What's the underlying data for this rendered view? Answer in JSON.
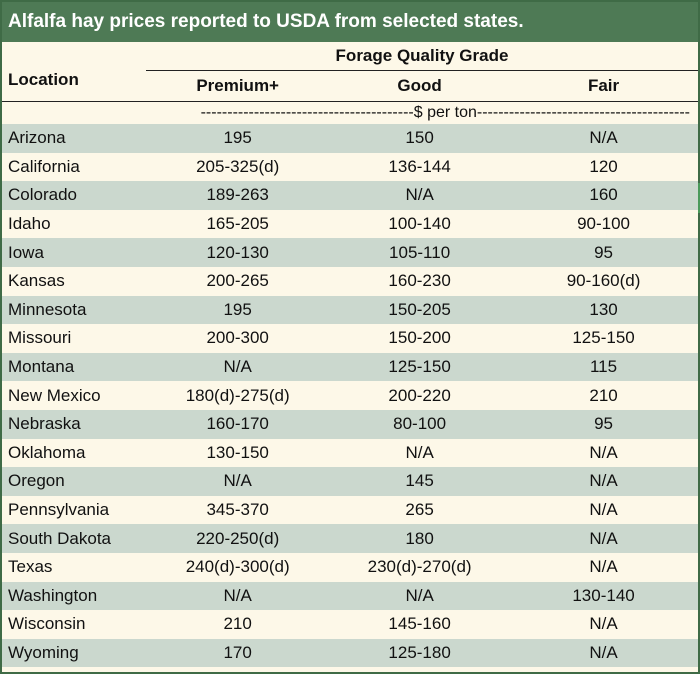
{
  "title": "Alfalfa hay prices reported to USDA from selected states.",
  "group_header": "Forage Quality Grade",
  "columns": {
    "location": "Location",
    "premium": "Premium+",
    "good": "Good",
    "fair": "Fair"
  },
  "units_label": "----------------------------------------$ per ton----------------------------------------",
  "rows": [
    {
      "location": "Arizona",
      "premium": "195",
      "good": "150",
      "fair": "N/A"
    },
    {
      "location": "California",
      "premium": "205-325(d)",
      "good": "136-144",
      "fair": "120"
    },
    {
      "location": "Colorado",
      "premium": "189-263",
      "good": "N/A",
      "fair": "160"
    },
    {
      "location": "Idaho",
      "premium": "165-205",
      "good": "100-140",
      "fair": "90-100"
    },
    {
      "location": "Iowa",
      "premium": "120-130",
      "good": "105-110",
      "fair": "95"
    },
    {
      "location": "Kansas",
      "premium": "200-265",
      "good": "160-230",
      "fair": "90-160(d)"
    },
    {
      "location": "Minnesota",
      "premium": "195",
      "good": "150-205",
      "fair": "130"
    },
    {
      "location": "Missouri",
      "premium": "200-300",
      "good": "150-200",
      "fair": "125-150"
    },
    {
      "location": "Montana",
      "premium": "N/A",
      "good": "125-150",
      "fair": "115"
    },
    {
      "location": "New Mexico",
      "premium": "180(d)-275(d)",
      "good": "200-220",
      "fair": "210"
    },
    {
      "location": "Nebraska",
      "premium": "160-170",
      "good": "80-100",
      "fair": "95"
    },
    {
      "location": "Oklahoma",
      "premium": "130-150",
      "good": "N/A",
      "fair": "N/A"
    },
    {
      "location": "Oregon",
      "premium": "N/A",
      "good": "145",
      "fair": "N/A"
    },
    {
      "location": "Pennsylvania",
      "premium": "345-370",
      "good": "265",
      "fair": "N/A"
    },
    {
      "location": "South Dakota",
      "premium": "220-250(d)",
      "good": "180",
      "fair": "N/A"
    },
    {
      "location": "Texas",
      "premium": "240(d)-300(d)",
      "good": "230(d)-270(d)",
      "fair": "N/A"
    },
    {
      "location": "Washington",
      "premium": "N/A",
      "good": "N/A",
      "fair": "130-140"
    },
    {
      "location": "Wisconsin",
      "premium": "210",
      "good": "145-160",
      "fair": "N/A"
    },
    {
      "location": "Wyoming",
      "premium": "170",
      "good": "125-180",
      "fair": "N/A"
    }
  ],
  "colors": {
    "title_bg": "#4e7a55",
    "row_shade": "#cbd8ce",
    "row_light": "#fdf8e8"
  }
}
